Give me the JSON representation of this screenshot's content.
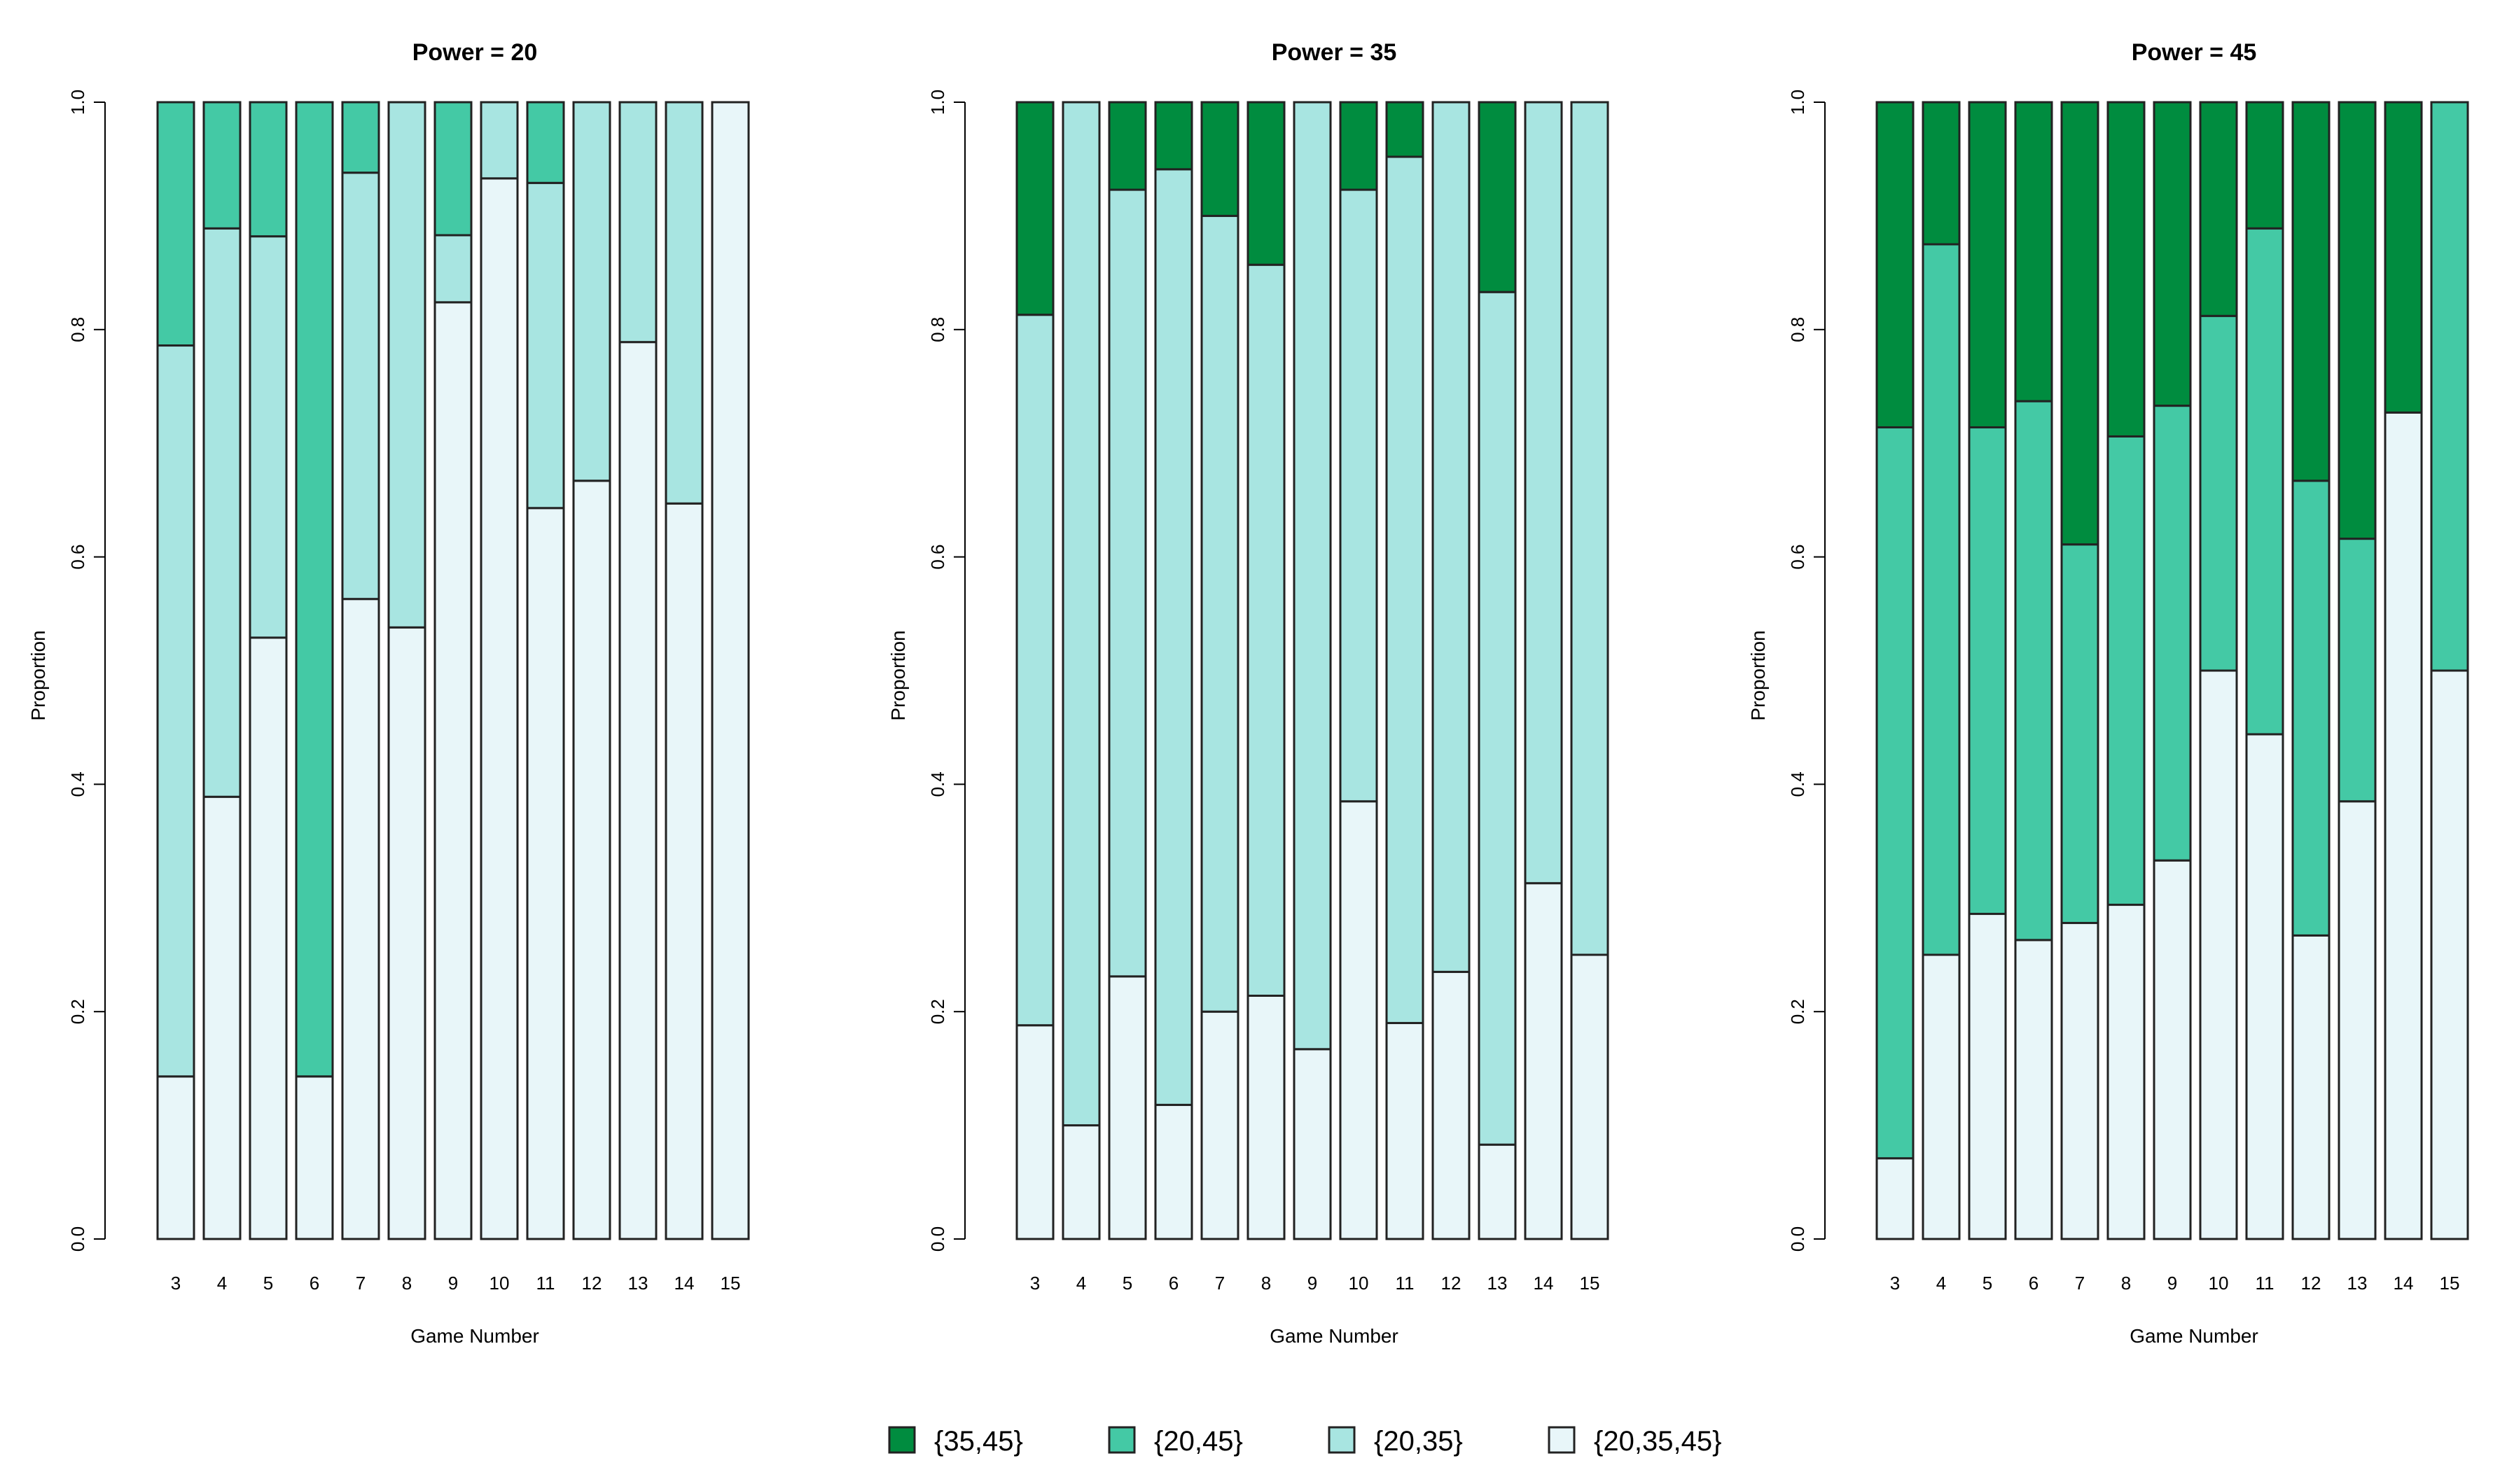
{
  "colors": {
    "{35,45}": "#008c3f",
    "{20,45}": "#44c9a5",
    "{20,35}": "#a8e5e1",
    "{20,35,45}": "#e8f6f9",
    "outline": "#222222"
  },
  "legend": {
    "items": [
      "{35,45}",
      "{20,45}",
      "{20,35}",
      "{20,35,45}"
    ]
  },
  "chart_data": [
    {
      "type": "bar",
      "stacked": true,
      "title": "Power = 20",
      "xlabel": "Game Number",
      "ylabel": "Proportion",
      "ylim": [
        0,
        1
      ],
      "yticks": [
        "0.0",
        "0.2",
        "0.4",
        "0.6",
        "0.8",
        "1.0"
      ],
      "categories": [
        "3",
        "4",
        "5",
        "6",
        "7",
        "8",
        "9",
        "10",
        "11",
        "12",
        "13",
        "14",
        "15"
      ],
      "series": [
        {
          "name": "{20,35,45}",
          "values": [
            0.143,
            0.389,
            0.529,
            0.143,
            0.563,
            0.538,
            0.824,
            0.933,
            0.643,
            0.667,
            0.789,
            0.647,
            1.0
          ]
        },
        {
          "name": "{20,35}",
          "values": [
            0.643,
            0.5,
            0.353,
            0.0,
            0.375,
            0.462,
            0.059,
            0.067,
            0.286,
            0.333,
            0.211,
            0.353,
            0.0
          ]
        },
        {
          "name": "{20,45}",
          "values": [
            0.214,
            0.111,
            0.118,
            0.857,
            0.062,
            0.0,
            0.117,
            0.0,
            0.071,
            0.0,
            0.0,
            0.0,
            0.0
          ]
        },
        {
          "name": "{35,45}",
          "values": [
            0,
            0,
            0,
            0,
            0,
            0,
            0,
            0,
            0,
            0,
            0,
            0,
            0
          ]
        }
      ]
    },
    {
      "type": "bar",
      "stacked": true,
      "title": "Power = 35",
      "xlabel": "Game Number",
      "ylabel": "Proportion",
      "ylim": [
        0,
        1
      ],
      "yticks": [
        "0.0",
        "0.2",
        "0.4",
        "0.6",
        "0.8",
        "1.0"
      ],
      "categories": [
        "3",
        "4",
        "5",
        "6",
        "7",
        "8",
        "9",
        "10",
        "11",
        "12",
        "13",
        "14",
        "15"
      ],
      "series": [
        {
          "name": "{20,35,45}",
          "values": [
            0.188,
            0.1,
            0.231,
            0.118,
            0.2,
            0.214,
            0.167,
            0.385,
            0.19,
            0.235,
            0.083,
            0.313,
            0.25
          ]
        },
        {
          "name": "{20,35}",
          "values": [
            0.625,
            0.9,
            0.692,
            0.823,
            0.7,
            0.643,
            0.833,
            0.538,
            0.762,
            0.765,
            0.75,
            0.687,
            0.75
          ]
        },
        {
          "name": "{20,45}",
          "values": [
            0.0,
            0.0,
            0.0,
            0.0,
            0.0,
            0.0,
            0.0,
            0.0,
            0.0,
            0.0,
            0.0,
            0.0,
            0.0
          ]
        },
        {
          "name": "{35,45}",
          "values": [
            0.187,
            0.0,
            0.077,
            0.059,
            0.1,
            0.143,
            0.0,
            0.077,
            0.048,
            0.0,
            0.167,
            0.0,
            0.0
          ]
        }
      ]
    },
    {
      "type": "bar",
      "stacked": true,
      "title": "Power = 45",
      "xlabel": "Game Number",
      "ylabel": "Proportion",
      "ylim": [
        0,
        1
      ],
      "yticks": [
        "0.0",
        "0.2",
        "0.4",
        "0.6",
        "0.8",
        "1.0"
      ],
      "categories": [
        "3",
        "4",
        "5",
        "6",
        "7",
        "8",
        "9",
        "10",
        "11",
        "12",
        "13",
        "14",
        "15"
      ],
      "series": [
        {
          "name": "{20,35,45}",
          "values": [
            0.071,
            0.25,
            0.286,
            0.263,
            0.278,
            0.294,
            0.333,
            0.5,
            0.444,
            0.267,
            0.385,
            0.727,
            0.5
          ]
        },
        {
          "name": "{20,35}",
          "values": [
            0,
            0,
            0,
            0,
            0,
            0,
            0,
            0,
            0,
            0,
            0,
            0,
            0
          ]
        },
        {
          "name": "{20,45}",
          "values": [
            0.643,
            0.625,
            0.428,
            0.474,
            0.333,
            0.412,
            0.4,
            0.312,
            0.445,
            0.4,
            0.231,
            0.0,
            0.5
          ]
        },
        {
          "name": "{35,45}",
          "values": [
            0.286,
            0.125,
            0.286,
            0.263,
            0.389,
            0.294,
            0.267,
            0.188,
            0.111,
            0.333,
            0.384,
            0.273,
            0.0
          ]
        }
      ]
    }
  ]
}
